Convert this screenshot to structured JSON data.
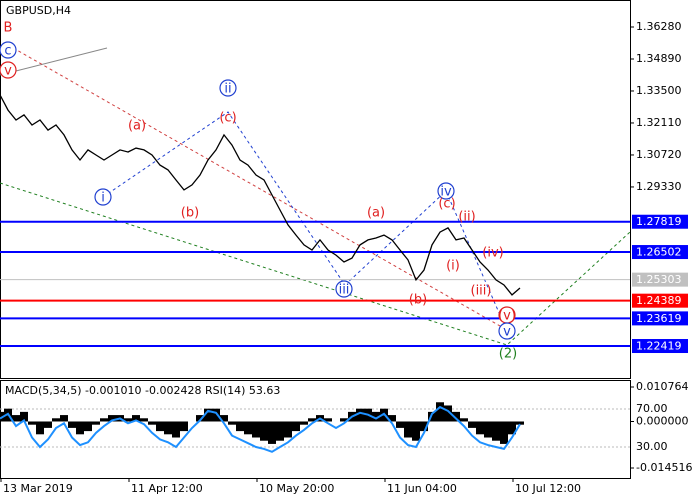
{
  "chart_data": {
    "type": "line",
    "title": "GBPUSD,H4",
    "ylim": [
      1.21029,
      1.37453
    ],
    "yticks": [
      {
        "value": 1.3628,
        "label": "1.36280"
      },
      {
        "value": 1.3489,
        "label": "1.34890"
      },
      {
        "value": 1.335,
        "label": "1.33500"
      },
      {
        "value": 1.3211,
        "label": "1.32110"
      },
      {
        "value": 1.3072,
        "label": "1.30720"
      },
      {
        "value": 1.2933,
        "label": "1.29330"
      }
    ],
    "xlim": [
      0,
      78.75
    ],
    "xticks": [
      {
        "value": 0,
        "label": "13 Mar 2019"
      },
      {
        "value": 16,
        "label": "11 Apr 12:00"
      },
      {
        "value": 32,
        "label": "10 May 20:00"
      },
      {
        "value": 48,
        "label": "11 Jun 04:00"
      },
      {
        "value": 64,
        "label": "10 Jul 12:00"
      }
    ],
    "color": "#000000",
    "values": [
      1.3333,
      1.3267,
      1.3224,
      1.3246,
      1.3202,
      1.3224,
      1.318,
      1.3202,
      1.3159,
      1.3094,
      1.305,
      1.3094,
      1.3072,
      1.305,
      1.3072,
      1.3094,
      1.3085,
      1.3102,
      1.3094,
      1.3072,
      1.3028,
      1.3007,
      1.2963,
      1.292,
      1.2942,
      1.2985,
      1.305,
      1.3094,
      1.3159,
      1.3115,
      1.305,
      1.3028,
      1.2985,
      1.2963,
      1.2898,
      1.2833,
      1.2768,
      1.2724,
      1.2681,
      1.2659,
      1.2703,
      1.2659,
      1.2637,
      1.2607,
      1.2624,
      1.2681,
      1.2703,
      1.2711,
      1.2724,
      1.2703,
      1.2659,
      1.2616,
      1.2529,
      1.2572,
      1.2681,
      1.2737,
      1.2755,
      1.2703,
      1.2711,
      1.2659,
      1.2607,
      1.2572,
      1.2529,
      1.2507,
      1.2464,
      1.2494
    ],
    "levels": [
      {
        "value": 1.27819,
        "color": "#0000ff"
      },
      {
        "value": 1.26502,
        "color": "#0000ff"
      },
      {
        "value": 1.25303,
        "color": "#c0c0c0"
      },
      {
        "value": 1.24389,
        "color": "#ff0000"
      },
      {
        "value": 1.23619,
        "color": "#0000ff"
      },
      {
        "value": 1.22419,
        "color": "#0000ff"
      }
    ],
    "annotations": [
      {
        "text": "B",
        "color": "#e02020",
        "circled": false
      },
      {
        "text": "c",
        "color": "#2040d0",
        "circled": true
      },
      {
        "text": "v",
        "color": "#e02020",
        "circled": true
      },
      {
        "text": "(a)",
        "color": "#e02020",
        "circled": false
      },
      {
        "text": "(c)",
        "color": "#e02020",
        "circled": false
      },
      {
        "text": "ii",
        "color": "#2040d0",
        "circled": true
      },
      {
        "text": "i",
        "color": "#2040d0",
        "circled": true
      },
      {
        "text": "(b)",
        "color": "#e02020",
        "circled": false
      },
      {
        "text": "(a)",
        "color": "#e02020",
        "circled": false
      },
      {
        "text": "iv",
        "color": "#2040d0",
        "circled": true
      },
      {
        "text": "(c)",
        "color": "#e02020",
        "circled": false
      },
      {
        "text": "(ii)",
        "color": "#e02020",
        "circled": false
      },
      {
        "text": "(iv)",
        "color": "#e02020",
        "circled": false
      },
      {
        "text": "(i)",
        "color": "#e02020",
        "circled": false
      },
      {
        "text": "(iii)",
        "color": "#e02020",
        "circled": false
      },
      {
        "text": "iii",
        "color": "#2040d0",
        "circled": true
      },
      {
        "text": "(b)",
        "color": "#e02020",
        "circled": false
      },
      {
        "text": "(v)",
        "color": "#e02020",
        "circled": true
      },
      {
        "text": "v",
        "color": "#2040d0",
        "circled": true
      },
      {
        "text": "(2)",
        "color": "#208020",
        "circled": false
      }
    ],
    "indicator": {
      "label": "MACD(5,34,5) -0.001010 -0.002428 RSI(14) 53.63",
      "ylim": [
        -0.014516,
        0.010764
      ],
      "yticks": [
        0.010764,
        {
          "value": 0,
          "label": "0.000000"
        },
        -0.014516
      ],
      "y2lim": [
        0,
        100
      ],
      "y2ticks": [
        {
          "value": 70,
          "label": "70.00"
        },
        {
          "value": 30,
          "label": "30.00"
        }
      ],
      "histogram": [
        0.003,
        0.004,
        0.002,
        0.003,
        -0.001,
        -0.004,
        -0.002,
        0.001,
        0.002,
        -0.002,
        -0.004,
        -0.003,
        -0.001,
        0.001,
        0.002,
        0.002,
        0.001,
        0.002,
        0.001,
        -0.001,
        -0.003,
        -0.004,
        -0.005,
        -0.003,
        0,
        0.002,
        0.004,
        0.004,
        0.002,
        -0.001,
        -0.003,
        -0.004,
        -0.005,
        -0.006,
        -0.007,
        -0.006,
        -0.005,
        -0.003,
        -0.001,
        0.001,
        0.002,
        0.001,
        0,
        0.001,
        0.003,
        0.004,
        0.004,
        0.003,
        0.004,
        0.002,
        -0.002,
        -0.005,
        -0.006,
        -0.003,
        0.003,
        0.006,
        0.005,
        0.003,
        0.001,
        -0.002,
        -0.004,
        -0.005,
        -0.006,
        -0.007,
        -0.004,
        -0.001
      ],
      "rsi": [
        60,
        65,
        52,
        58,
        40,
        30,
        38,
        50,
        55,
        40,
        32,
        35,
        45,
        52,
        58,
        60,
        55,
        58,
        54,
        45,
        38,
        35,
        30,
        40,
        50,
        58,
        68,
        66,
        55,
        42,
        38,
        34,
        30,
        28,
        25,
        30,
        35,
        42,
        48,
        55,
        60,
        55,
        50,
        55,
        62,
        66,
        64,
        60,
        65,
        55,
        40,
        32,
        30,
        45,
        65,
        72,
        68,
        60,
        52,
        42,
        35,
        32,
        30,
        28,
        40,
        54
      ],
      "rsi_color": "#1e90ff"
    }
  }
}
